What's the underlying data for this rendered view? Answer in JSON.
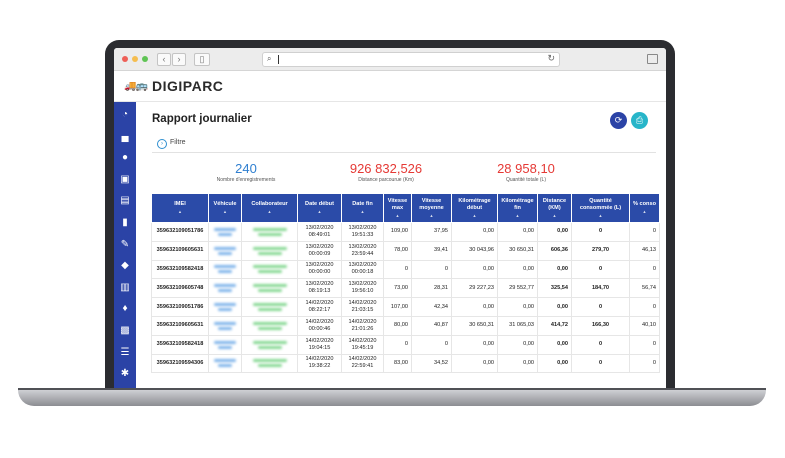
{
  "browser": {
    "back_icon": "chevron-left-icon",
    "forward_icon": "chevron-right-icon",
    "address_value": "",
    "colors": {
      "close": "#ee5f57",
      "minimize": "#f5bd4f",
      "maximize": "#5fc454"
    }
  },
  "app": {
    "logo_text": "DIGIPARC",
    "accent": "#2b43a6"
  },
  "sidebar": {
    "items": [
      {
        "icon": "dashboard-icon",
        "glyph": "◔"
      },
      {
        "icon": "car-icon",
        "glyph": "▄"
      },
      {
        "icon": "user-icon",
        "glyph": "●"
      },
      {
        "icon": "bus-icon",
        "glyph": "▣"
      },
      {
        "icon": "document-icon",
        "glyph": "▤"
      },
      {
        "icon": "fuel-icon",
        "glyph": "▮"
      },
      {
        "icon": "wrench-icon",
        "glyph": "✎"
      },
      {
        "icon": "layers-icon",
        "glyph": "◆"
      },
      {
        "icon": "building-icon",
        "glyph": "▥"
      },
      {
        "icon": "map-marker-icon",
        "glyph": "♦"
      },
      {
        "icon": "vehicle-front-icon",
        "glyph": "▩"
      },
      {
        "icon": "report-icon",
        "glyph": "☰"
      },
      {
        "icon": "gear-icon",
        "glyph": "✱"
      }
    ]
  },
  "page": {
    "title": "Rapport journalier",
    "filter_label": "Filtre",
    "refresh_icon": "refresh-icon",
    "print_icon": "print-icon"
  },
  "stats": [
    {
      "value": "240",
      "label": "Nombre d'enregistrements",
      "color": "#2f7fd0"
    },
    {
      "value": "926 832,526",
      "label": "Distance parcourue (Km)",
      "color": "#e53935"
    },
    {
      "value": "28 958,10",
      "label": "Quantité totale (L)",
      "color": "#e53935"
    }
  ],
  "table": {
    "columns": [
      "IMEI",
      "Véhicule",
      "Collaborateur",
      "Date début",
      "Date fin",
      "Vitesse max",
      "Vitesse moyenne",
      "Kilométrage début",
      "Kilométrage fin",
      "Distance (KM)",
      "Quantité consommée (L)",
      "% conso"
    ],
    "rows": [
      {
        "imei": "359632109051786",
        "date_debut": "13/02/2020",
        "time_debut": "08:49:01",
        "date_fin": "13/02/2020",
        "time_fin": "19:51:33",
        "vmax": "109,00",
        "vmoy": "37,95",
        "km_debut": "0,00",
        "km_fin": "0,00",
        "distance": "0,00",
        "quantite": "0",
        "conso": "0"
      },
      {
        "imei": "359632109605631",
        "date_debut": "13/02/2020",
        "time_debut": "00:00:09",
        "date_fin": "13/02/2020",
        "time_fin": "23:59:44",
        "vmax": "78,00",
        "vmoy": "39,41",
        "km_debut": "30 043,96",
        "km_fin": "30 650,31",
        "distance": "606,36",
        "quantite": "279,70",
        "conso": "46,13"
      },
      {
        "imei": "359632109582418",
        "date_debut": "13/02/2020",
        "time_debut": "00:00:00",
        "date_fin": "13/02/2020",
        "time_fin": "00:00:18",
        "vmax": "0",
        "vmoy": "0",
        "km_debut": "0,00",
        "km_fin": "0,00",
        "distance": "0,00",
        "quantite": "0",
        "conso": "0"
      },
      {
        "imei": "359632109605748",
        "date_debut": "13/02/2020",
        "time_debut": "08:19:13",
        "date_fin": "13/02/2020",
        "time_fin": "19:56:10",
        "vmax": "73,00",
        "vmoy": "28,31",
        "km_debut": "29 227,23",
        "km_fin": "29 552,77",
        "distance": "325,54",
        "quantite": "184,70",
        "conso": "56,74"
      },
      {
        "imei": "359632109051786",
        "date_debut": "14/02/2020",
        "time_debut": "08:22:17",
        "date_fin": "14/02/2020",
        "time_fin": "21:03:15",
        "vmax": "107,00",
        "vmoy": "42,34",
        "km_debut": "0,00",
        "km_fin": "0,00",
        "distance": "0,00",
        "quantite": "0",
        "conso": "0"
      },
      {
        "imei": "359632109605631",
        "date_debut": "14/02/2020",
        "time_debut": "00:00:46",
        "date_fin": "14/02/2020",
        "time_fin": "21:01:26",
        "vmax": "80,00",
        "vmoy": "40,87",
        "km_debut": "30 650,31",
        "km_fin": "31 065,03",
        "distance": "414,72",
        "quantite": "166,30",
        "conso": "40,10"
      },
      {
        "imei": "359632109582418",
        "date_debut": "14/02/2020",
        "time_debut": "19:04:15",
        "date_fin": "14/02/2020",
        "time_fin": "19:45:19",
        "vmax": "0",
        "vmoy": "0",
        "km_debut": "0,00",
        "km_fin": "0,00",
        "distance": "0,00",
        "quantite": "0",
        "conso": "0"
      },
      {
        "imei": "359632109594306",
        "date_debut": "14/02/2020",
        "time_debut": "19:38:22",
        "date_fin": "14/02/2020",
        "time_fin": "22:59:41",
        "vmax": "83,00",
        "vmoy": "34,52",
        "km_debut": "0,00",
        "km_fin": "0,00",
        "distance": "0,00",
        "quantite": "0",
        "conso": "0"
      }
    ]
  }
}
